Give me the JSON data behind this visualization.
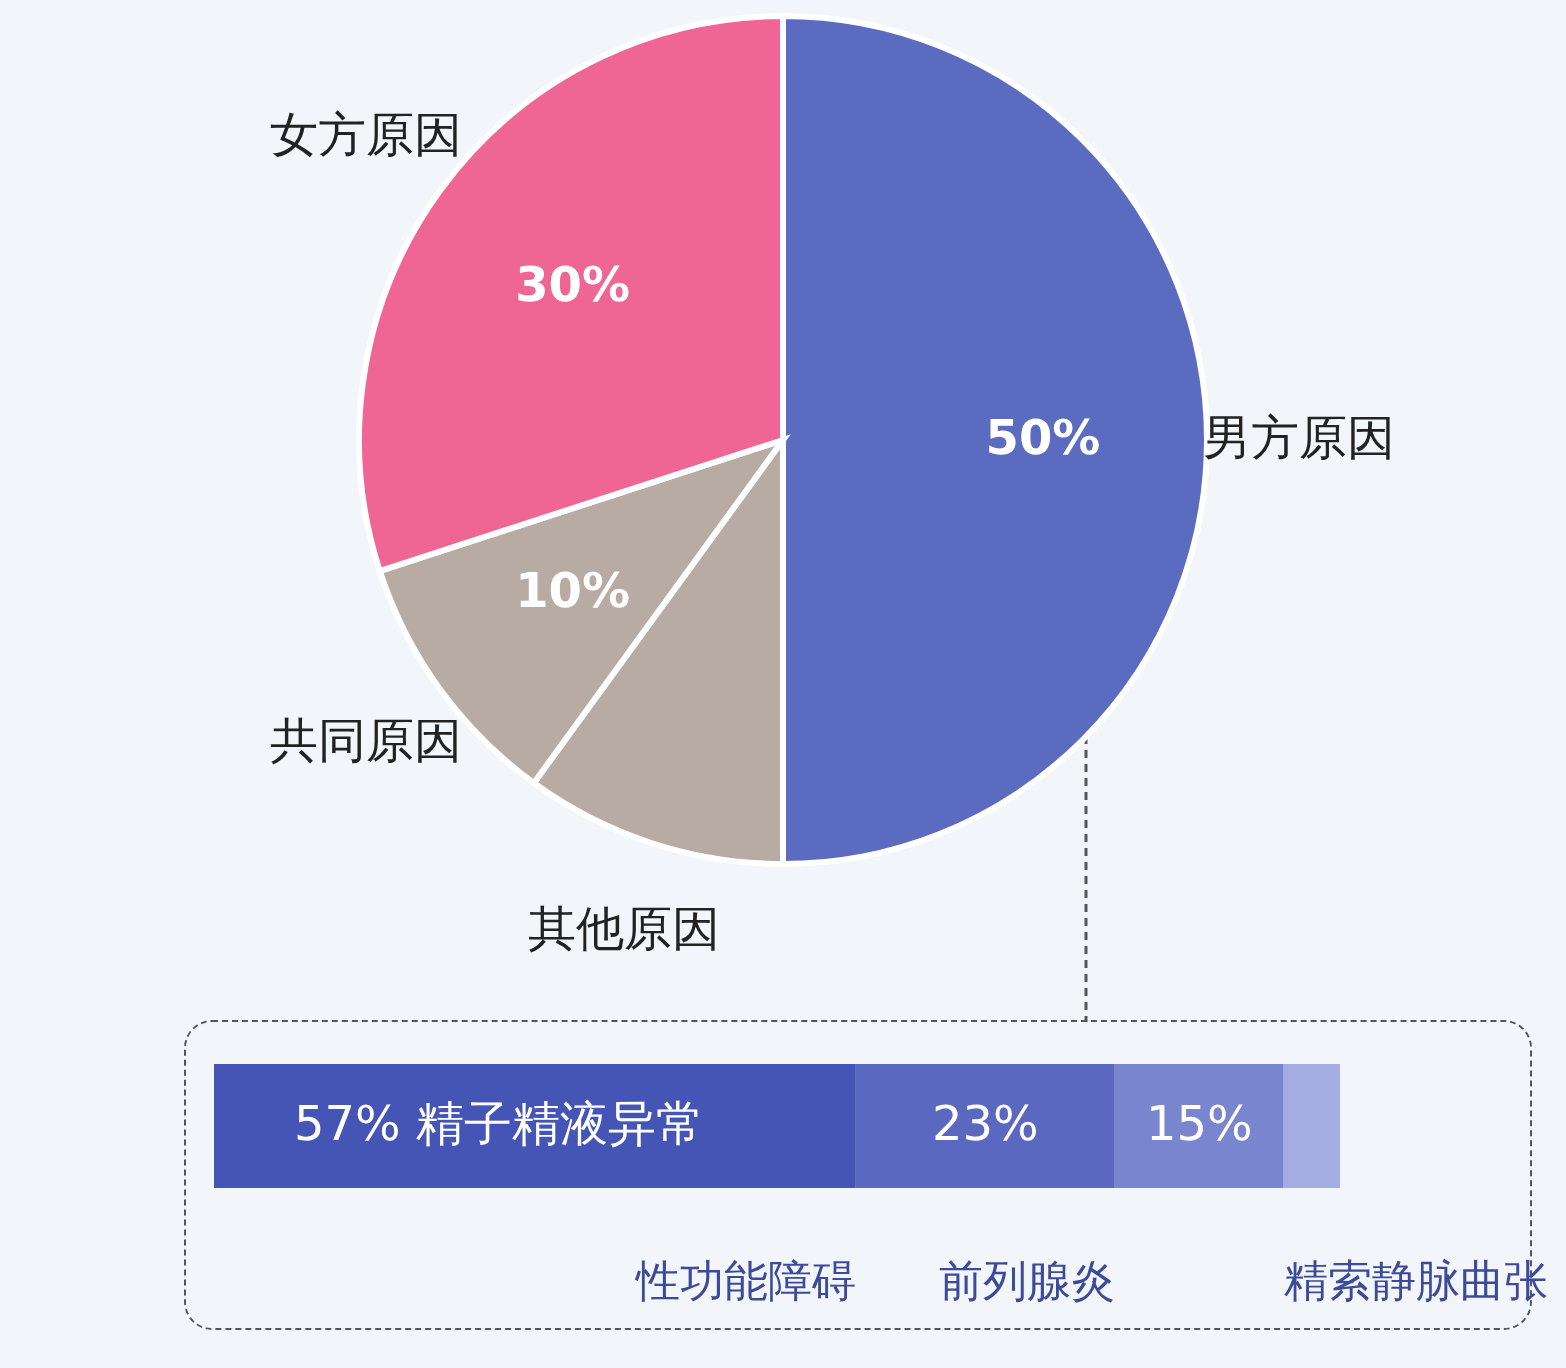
{
  "chart_data": [
    {
      "type": "pie",
      "categories": [
        "男方原因",
        "其他原因",
        "共同原因",
        "女方原因"
      ],
      "values": [
        50,
        10,
        10,
        30
      ],
      "colors": [
        "#5b6bbf",
        "#b8aba4",
        "#b8aba4",
        "#ef6593"
      ],
      "value_labels": [
        "50%",
        null,
        "10%",
        "30%"
      ]
    },
    {
      "type": "bar",
      "orientation": "horizontal",
      "stacked": true,
      "categories": [
        null
      ],
      "series": [
        {
          "name": "精子精液异常",
          "color": "#4555b5",
          "values": [
            57
          ],
          "value_labels": [
            "57%"
          ]
        },
        {
          "name": "性功能障碍",
          "color": "#5a68c0",
          "values": [
            23
          ],
          "value_labels": [
            "23%"
          ]
        },
        {
          "name": "前列腺炎",
          "color": "#7a85cf",
          "values": [
            15
          ],
          "value_labels": [
            "15%"
          ]
        },
        {
          "name": "精索静脉曲张",
          "color": "#a5ade2",
          "values": [
            5
          ],
          "value_labels": [
            null
          ]
        }
      ]
    }
  ]
}
